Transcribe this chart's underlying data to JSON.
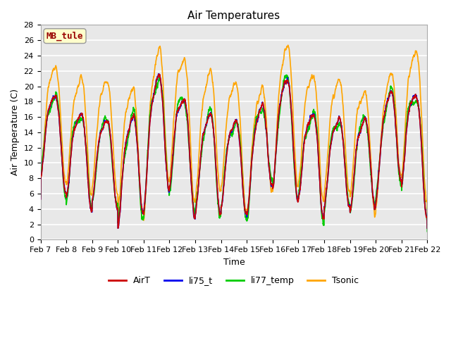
{
  "title": "Air Temperatures",
  "xlabel": "Time",
  "ylabel": "Air Temperature (C)",
  "ylim": [
    0,
    28
  ],
  "yticks": [
    0,
    2,
    4,
    6,
    8,
    10,
    12,
    14,
    16,
    18,
    20,
    22,
    24,
    26,
    28
  ],
  "xtick_labels": [
    "Feb 7",
    "Feb 8",
    "Feb 9",
    "Feb 10",
    "Feb 11",
    "Feb 12",
    "Feb 13",
    "Feb 14",
    "Feb 15",
    "Feb 16",
    "Feb 17",
    "Feb 18",
    "Feb 19",
    "Feb 20",
    "Feb 21",
    "Feb 22"
  ],
  "series": {
    "AirT": {
      "color": "#cc0000",
      "lw": 1.2
    },
    "li75_t": {
      "color": "#0000ee",
      "lw": 1.2
    },
    "li77_temp": {
      "color": "#00cc00",
      "lw": 1.2
    },
    "Tsonic": {
      "color": "#ffa500",
      "lw": 1.2
    }
  },
  "legend_label_box": {
    "text": "MB_tule",
    "text_color": "#990000",
    "bg_color": "#ffffcc",
    "edge_color": "#999999"
  },
  "bg_color": "#e8e8e8",
  "plot_bg_color": "#e8e8e8",
  "grid_color": "#ffffff",
  "title_fontsize": 11,
  "axis_fontsize": 9,
  "tick_fontsize": 8
}
